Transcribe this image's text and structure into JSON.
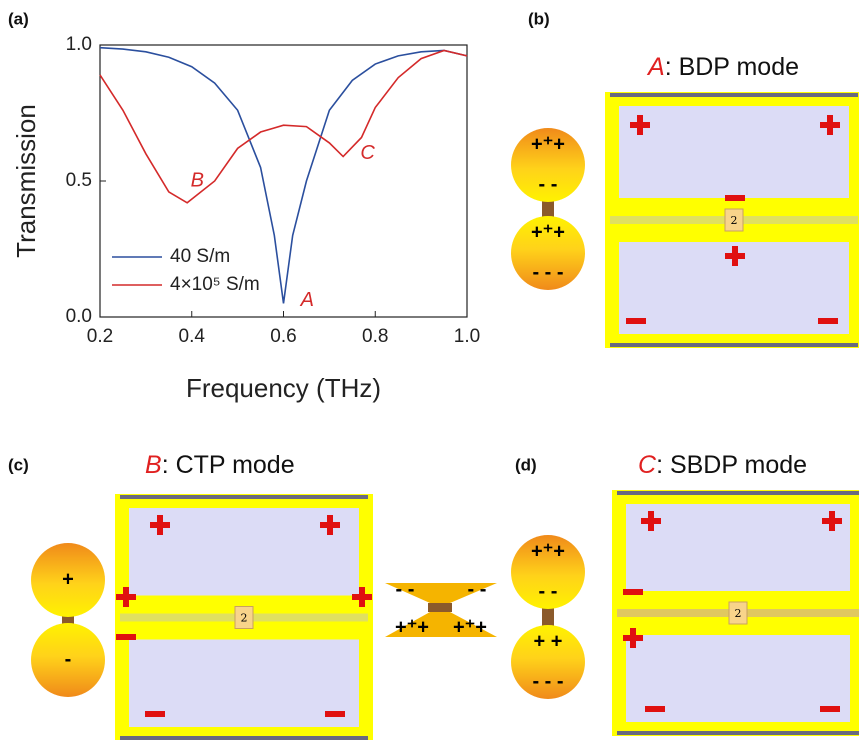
{
  "chart_data": {
    "type": "line",
    "x_label": "Frequency (THz)",
    "y_label": "Transmission",
    "xlim": [
      0.2,
      1.0
    ],
    "ylim": [
      0,
      1.0
    ],
    "xticks": [
      0.2,
      0.4,
      0.6,
      0.8,
      {
        "value": 1.0,
        "label": "1.0"
      }
    ],
    "yticks": [
      {
        "value": 0,
        "label": "0.0"
      },
      0.5,
      {
        "value": 1.0,
        "label": "1.0"
      }
    ],
    "legend": "lower left",
    "series": [
      {
        "name": "40 S/m",
        "color": "#2b4f9e",
        "x": [
          0.2,
          0.25,
          0.3,
          0.35,
          0.4,
          0.45,
          0.5,
          0.55,
          0.58,
          0.6,
          0.62,
          0.65,
          0.7,
          0.75,
          0.8,
          0.85,
          0.9,
          0.95,
          1.0
        ],
        "values": [
          0.99,
          0.985,
          0.975,
          0.955,
          0.92,
          0.86,
          0.76,
          0.55,
          0.3,
          0.05,
          0.3,
          0.5,
          0.76,
          0.87,
          0.93,
          0.96,
          0.975,
          0.98,
          0.96
        ]
      },
      {
        "name": "4×10⁵ S/m",
        "color": "#d42a2a",
        "x": [
          0.2,
          0.25,
          0.3,
          0.35,
          0.39,
          0.45,
          0.5,
          0.55,
          0.6,
          0.65,
          0.7,
          0.73,
          0.77,
          0.8,
          0.85,
          0.9,
          0.95,
          1.0
        ],
        "values": [
          0.89,
          0.76,
          0.6,
          0.46,
          0.42,
          0.5,
          0.62,
          0.68,
          0.705,
          0.7,
          0.64,
          0.59,
          0.66,
          0.77,
          0.88,
          0.95,
          0.98,
          0.96
        ]
      }
    ],
    "annotations": [
      {
        "text": "A",
        "x": 0.62,
        "y": 0.06
      },
      {
        "text": "B",
        "x": 0.38,
        "y": 0.5
      },
      {
        "text": "C",
        "x": 0.75,
        "y": 0.6
      }
    ]
  },
  "panels": [
    "(a)",
    "(b)",
    "(c)",
    "(d)"
  ],
  "modes": [
    {
      "letter": "A",
      "name": ": BDP mode"
    },
    {
      "letter": "B",
      "name": ": CTP mode"
    },
    {
      "letter": "C",
      "name": ": SBDP mode"
    }
  ],
  "gap_label": "2",
  "charges": {
    "b": [
      "+⁺+",
      "- -",
      "+⁺+",
      "- - -"
    ],
    "c": [
      "+",
      "-"
    ],
    "bowtie": [
      "- -",
      "- -",
      "+⁺+",
      "+⁺+"
    ],
    "d": [
      "+⁺+",
      "-  -",
      "+   +",
      "- - -"
    ]
  }
}
